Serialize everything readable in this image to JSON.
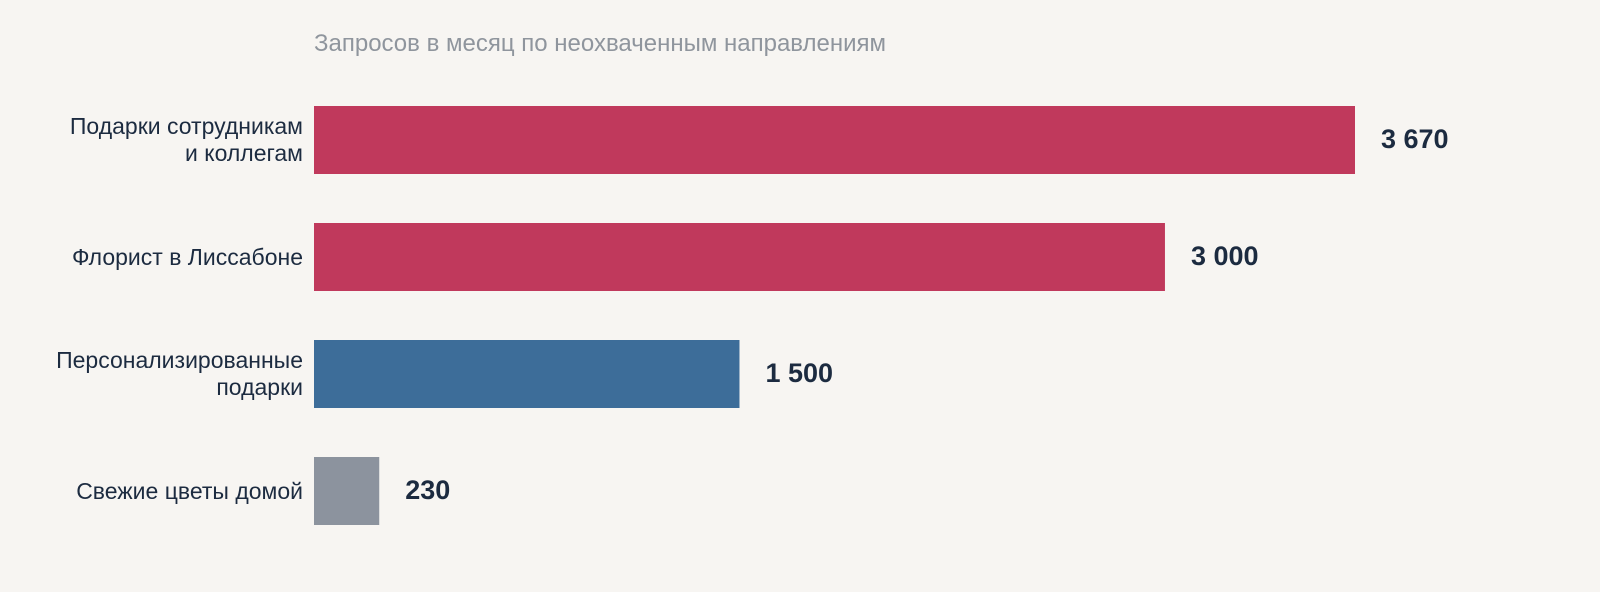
{
  "chart_data": {
    "type": "bar",
    "orientation": "horizontal",
    "title": "Запросов в месяц по неохваченным направлениям",
    "categories": [
      "Подарки сотрудникам\nи коллегам",
      "Флорист в Лиссабоне",
      "Персонализированные\nподарки",
      "Свежие цветы домой"
    ],
    "values": [
      3670,
      3000,
      1500,
      230
    ],
    "value_labels": [
      "3 670",
      "3 000",
      "1 500",
      "230"
    ],
    "colors": [
      "#c0395c",
      "#c0395c",
      "#3d6d99",
      "#8c939e"
    ]
  }
}
